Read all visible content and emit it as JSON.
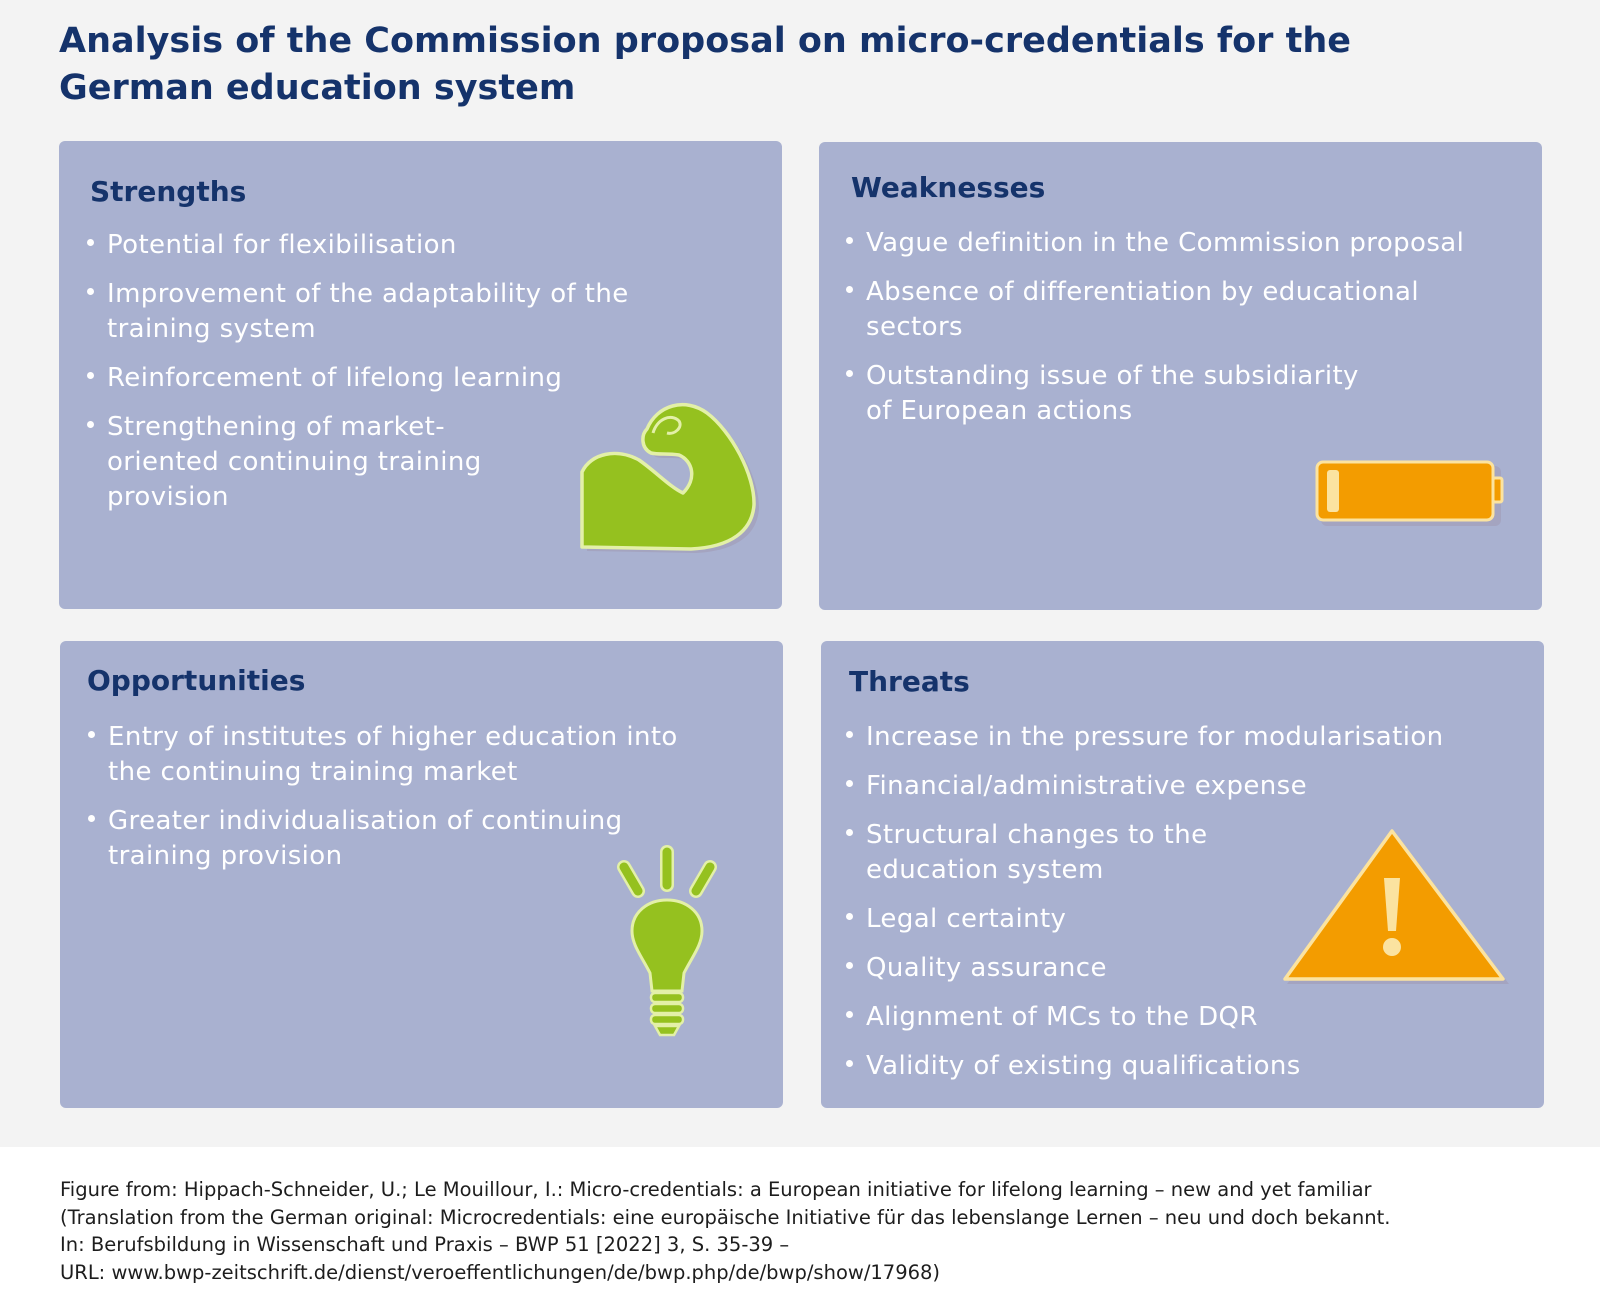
{
  "title": {
    "line1": "Analysis of the Commission proposal on micro-credentials for the",
    "line2": "German education system"
  },
  "strengths": {
    "heading": "Strengths",
    "items": [
      "Potential for flexibilisation",
      "Improvement of the adaptability of the training system",
      "Reinforcement of lifelong learning",
      "Strengthening of market-oriented continuing training provision"
    ],
    "icon": "flexed-arm-icon"
  },
  "weaknesses": {
    "heading": "Weaknesses",
    "items": [
      "Vague definition in the Commission proposal",
      "Absence of differentiation by educational sectors",
      "Outstanding issue of the subsidiarity of European actions"
    ],
    "icon": "low-battery-icon"
  },
  "opportunities": {
    "heading": "Opportunities",
    "items": [
      "Entry of institutes of higher education into the continuing training market",
      "Greater individualisation of continuing training provision"
    ],
    "icon": "light-bulb-icon"
  },
  "threats": {
    "heading": "Threats",
    "items": [
      "Increase in the pressure for modularisation",
      "Financial/administrative expense",
      "Structural changes to the education system",
      "Legal certainty",
      "Quality assurance",
      "Alignment of MCs to the DQR",
      "Validity of existing qualifications"
    ],
    "icon": "warning-triangle-icon"
  },
  "caption": {
    "line1": "Figure from: Hippach-Schneider, U.; Le Mouillour, I.: Micro-credentials: a European initiative for lifelong learning – new and yet familiar",
    "line2": "(Translation from the German original: Microcredentials: eine europäische Initiative für das lebenslange Lernen – neu und doch bekannt.",
    "line3": "In: Berufsbildung in Wissenschaft und Praxis – BWP 51 [2022] 3, S. 35-39 –",
    "line4": "URL: www.bwp-zeitschrift.de/dienst/veroeffentlichungen/de/bwp.php/de/bwp/show/17968)"
  },
  "colors": {
    "title_navy": "#15336b",
    "card_bg": "#a9b1d0",
    "icon_green": "#95c11f",
    "icon_orange": "#f39c00",
    "page_bg": "#f3f3f3"
  }
}
